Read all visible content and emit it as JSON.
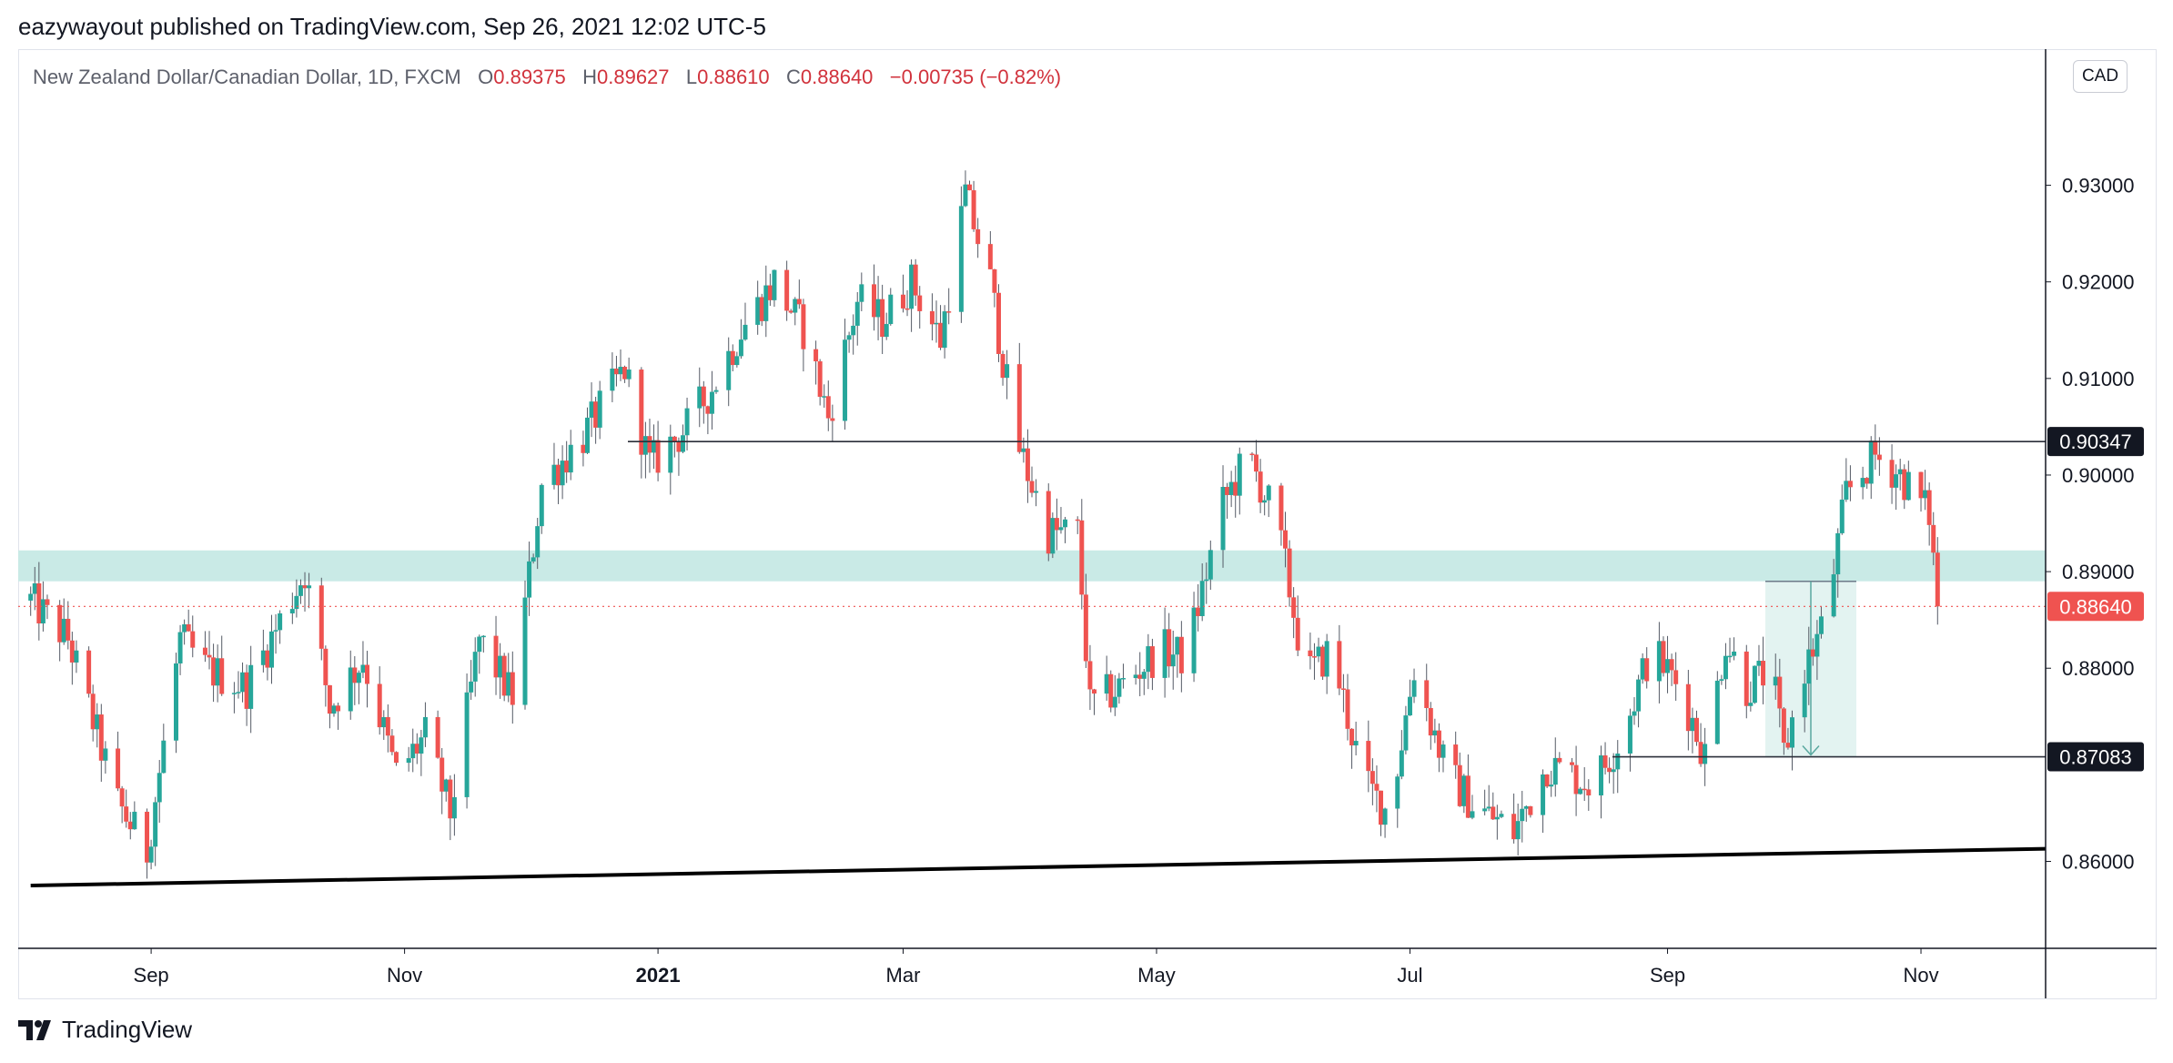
{
  "header": {
    "publisher": "eazywayout published on TradingView.com, Sep 26, 2021 12:02 UTC-5"
  },
  "legend": {
    "symbol": "New Zealand Dollar/Canadian Dollar, 1D, FXCM",
    "o_label": "O",
    "o_value": "0.89375",
    "h_label": "H",
    "h_value": "0.89627",
    "l_label": "L",
    "l_value": "0.88610",
    "c_label": "C",
    "c_value": "0.88640",
    "change": "−0.00735 (−0.82%)"
  },
  "currency_button": "CAD",
  "brand": {
    "name": "TradingView"
  },
  "colors": {
    "up": "#26a69a",
    "down": "#ef5350",
    "zone": "#c9eae6",
    "axis": "#131722"
  },
  "chart_data": {
    "type": "candlestick",
    "symbol": "NZDCAD",
    "timeframe": "1D",
    "x_ticks": [
      "Sep",
      "Nov",
      "2021",
      "Mar",
      "May",
      "Jul",
      "Sep",
      "Nov"
    ],
    "y_ticks": [
      "0.93000",
      "0.92000",
      "0.91000",
      "0.90000",
      "0.89000",
      "0.88000",
      "0.86000"
    ],
    "ylim": [
      0.851,
      0.944
    ],
    "markers": {
      "last_price": "0.88640",
      "resistance": "0.90347",
      "target": "0.87083"
    },
    "resistance_level": 0.90347,
    "target_level": 0.87083,
    "last_price": 0.8864,
    "support_zone": [
      0.889,
      0.8922
    ],
    "trendline": [
      {
        "date": "2020-08-03",
        "price": 0.8575
      },
      {
        "date": "2021-12-01",
        "price": 0.8613
      }
    ],
    "close_path": [
      {
        "date": "2020-08-03",
        "price": 0.887
      },
      {
        "date": "2020-08-12",
        "price": 0.883
      },
      {
        "date": "2020-08-24",
        "price": 0.866
      },
      {
        "date": "2020-08-31",
        "price": 0.861
      },
      {
        "date": "2020-09-08",
        "price": 0.883
      },
      {
        "date": "2020-09-14",
        "price": 0.88
      },
      {
        "date": "2020-09-24",
        "price": 0.878
      },
      {
        "date": "2020-10-08",
        "price": 0.89
      },
      {
        "date": "2020-10-14",
        "price": 0.876
      },
      {
        "date": "2020-10-22",
        "price": 0.881
      },
      {
        "date": "2020-10-30",
        "price": 0.869
      },
      {
        "date": "2020-11-06",
        "price": 0.873
      },
      {
        "date": "2020-11-12",
        "price": 0.865
      },
      {
        "date": "2020-11-19",
        "price": 0.883
      },
      {
        "date": "2020-11-27",
        "price": 0.877
      },
      {
        "date": "2020-12-04",
        "price": 0.899
      },
      {
        "date": "2020-12-14",
        "price": 0.904
      },
      {
        "date": "2020-12-24",
        "price": 0.911
      },
      {
        "date": "2020-12-30",
        "price": 0.901
      },
      {
        "date": "2021-01-08",
        "price": 0.905
      },
      {
        "date": "2021-01-14",
        "price": 0.909
      },
      {
        "date": "2021-01-21",
        "price": 0.915
      },
      {
        "date": "2021-01-29",
        "price": 0.92
      },
      {
        "date": "2021-02-05",
        "price": 0.915
      },
      {
        "date": "2021-02-11",
        "price": 0.906
      },
      {
        "date": "2021-02-18",
        "price": 0.918
      },
      {
        "date": "2021-02-24",
        "price": 0.916
      },
      {
        "date": "2021-03-03",
        "price": 0.92
      },
      {
        "date": "2021-03-10",
        "price": 0.914
      },
      {
        "date": "2021-03-16",
        "price": 0.929
      },
      {
        "date": "2021-03-22",
        "price": 0.92
      },
      {
        "date": "2021-03-28",
        "price": 0.904
      },
      {
        "date": "2021-04-05",
        "price": 0.894
      },
      {
        "date": "2021-04-12",
        "price": 0.894
      },
      {
        "date": "2021-04-15",
        "price": 0.876
      },
      {
        "date": "2021-04-22",
        "price": 0.878
      },
      {
        "date": "2021-05-02",
        "price": 0.882
      },
      {
        "date": "2021-05-08",
        "price": 0.881
      },
      {
        "date": "2021-05-17",
        "price": 0.897
      },
      {
        "date": "2021-05-23",
        "price": 0.902
      },
      {
        "date": "2021-05-30",
        "price": 0.895
      },
      {
        "date": "2021-06-06",
        "price": 0.879
      },
      {
        "date": "2021-06-12",
        "price": 0.882
      },
      {
        "date": "2021-06-20",
        "price": 0.868
      },
      {
        "date": "2021-06-26",
        "price": 0.865
      },
      {
        "date": "2021-07-02",
        "price": 0.88
      },
      {
        "date": "2021-07-10",
        "price": 0.869
      },
      {
        "date": "2021-07-16",
        "price": 0.866
      },
      {
        "date": "2021-07-26",
        "price": 0.863
      },
      {
        "date": "2021-08-03",
        "price": 0.87
      },
      {
        "date": "2021-08-14",
        "price": 0.868
      },
      {
        "date": "2021-08-21",
        "price": 0.873
      },
      {
        "date": "2021-08-28",
        "price": 0.882
      },
      {
        "date": "2021-09-04",
        "price": 0.878
      },
      {
        "date": "2021-09-10",
        "price": 0.871
      },
      {
        "date": "2021-09-15",
        "price": 0.883
      },
      {
        "date": "2021-09-20",
        "price": 0.878
      },
      {
        "date": "2021-09-26",
        "price": 0.88
      },
      {
        "date": "2021-09-29",
        "price": 0.871
      },
      {
        "date": "2021-10-04",
        "price": 0.88
      },
      {
        "date": "2021-10-09",
        "price": 0.885
      },
      {
        "date": "2021-10-14",
        "price": 0.898
      },
      {
        "date": "2021-10-21",
        "price": 0.902
      },
      {
        "date": "2021-10-27",
        "price": 0.9
      },
      {
        "date": "2021-11-03",
        "price": 0.896
      },
      {
        "date": "2021-11-05",
        "price": 0.8864
      }
    ]
  }
}
